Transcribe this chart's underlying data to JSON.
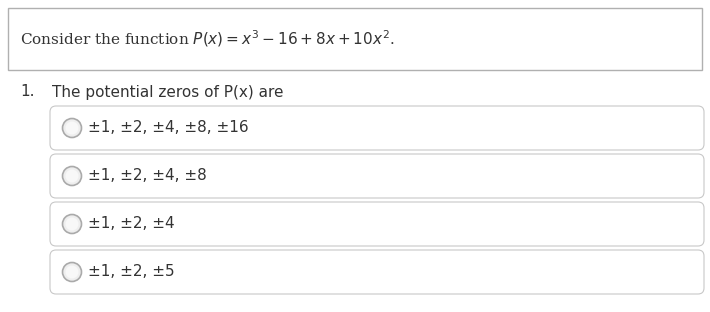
{
  "bg_color": "#ffffff",
  "border_color": "#b0b0b0",
  "text_color": "#333333",
  "option_border_color": "#c8c8c8",
  "header_text_plain": "Consider the function ",
  "header_math": "$P(x) = x^3 - 16 + 8x + 10x^2$.",
  "question_number": "1.",
  "question_text": "The potential zeros of P(x) are",
  "options": [
    "±1, ±2, ±4, ±8, ±16",
    "±1, ±2, ±4, ±8",
    "±1, ±2, ±4",
    "±1, ±2, ±5"
  ],
  "header_fontsize": 11.0,
  "question_fontsize": 11.0,
  "option_fontsize": 11.0,
  "figsize": [
    7.1,
    3.12
  ],
  "dpi": 100
}
